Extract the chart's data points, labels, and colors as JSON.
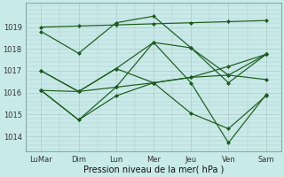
{
  "title": "",
  "xlabel": "Pression niveau de la mer( hPa )",
  "ylabel": "",
  "background_color": "#c8eae8",
  "grid_color": "#b0c8c8",
  "line_color": "#1a5c1a",
  "x_labels": [
    "LuMar",
    "Dim",
    "Lun",
    "Mer",
    "Jeu",
    "Ven",
    "Sam"
  ],
  "x_ticks": [
    0,
    1,
    2,
    3,
    4,
    5,
    6
  ],
  "ylim": [
    1013.3,
    1020.1
  ],
  "yticks": [
    1014,
    1015,
    1016,
    1017,
    1018,
    1019
  ],
  "series1": [
    1019.0,
    1019.05,
    1019.1,
    1019.15,
    1019.2,
    1019.25,
    1019.3
  ],
  "series2": [
    1018.8,
    1017.8,
    1019.2,
    1019.5,
    1018.05,
    1016.45,
    1017.75
  ],
  "series3": [
    1017.0,
    1016.05,
    1017.1,
    1016.45,
    1016.7,
    1016.8,
    1017.75
  ],
  "series4": [
    1017.0,
    1016.05,
    1016.25,
    1016.45,
    1016.7,
    1017.2,
    1017.75
  ],
  "series5": [
    1016.1,
    1016.05,
    1017.1,
    1018.3,
    1018.05,
    1016.8,
    1016.6
  ],
  "series6": [
    1016.1,
    1014.75,
    1015.85,
    1016.45,
    1015.05,
    1014.35,
    1015.85
  ],
  "series7": [
    1016.1,
    1014.75,
    1016.25,
    1018.3,
    1016.45,
    1013.7,
    1015.9
  ]
}
